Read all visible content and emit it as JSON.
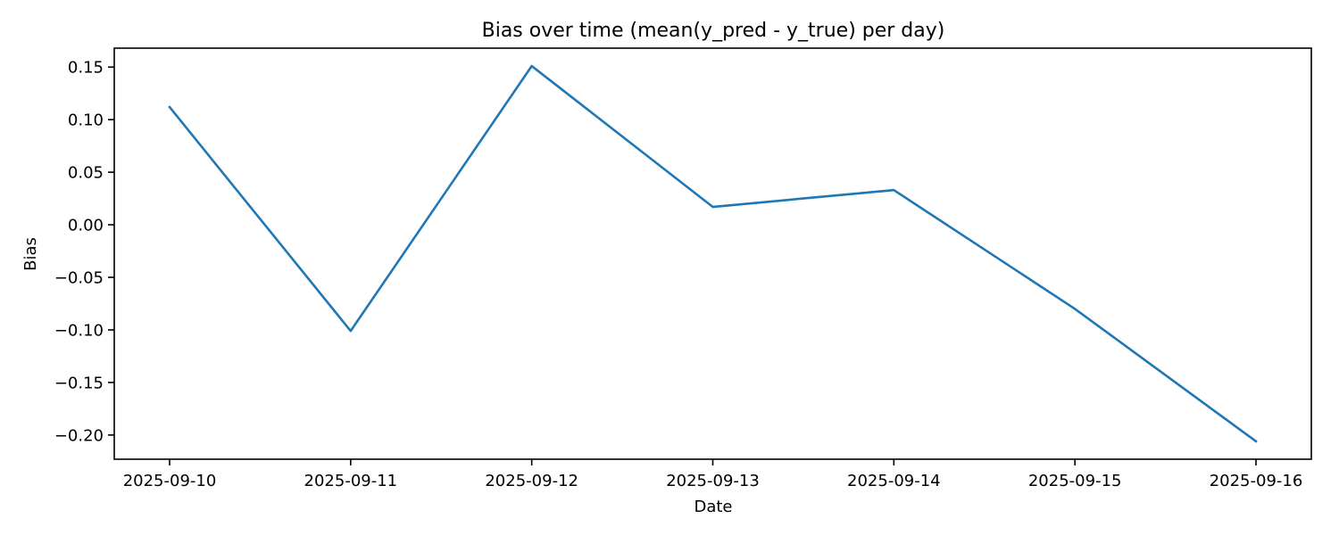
{
  "chart_data": {
    "type": "line",
    "title": "Bias over time (mean(y_pred - y_true) per day)",
    "xlabel": "Date",
    "ylabel": "Bias",
    "x": [
      "2025-09-10",
      "2025-09-11",
      "2025-09-12",
      "2025-09-13",
      "2025-09-14",
      "2025-09-15",
      "2025-09-16"
    ],
    "series": [
      {
        "values": [
          0.112,
          -0.101,
          0.151,
          0.017,
          0.033,
          -0.08,
          -0.206
        ],
        "color": "#1f77b4"
      }
    ],
    "ylim": [
      -0.223,
      0.168
    ],
    "yticks": [
      0.15,
      0.1,
      0.05,
      0.0,
      -0.05,
      -0.1,
      -0.15,
      -0.2
    ],
    "ytick_labels": [
      "0.15",
      "0.10",
      "0.05",
      "0.00",
      "−0.05",
      "−0.10",
      "−0.15",
      "−0.20"
    ],
    "grid": false,
    "legend": "none"
  }
}
